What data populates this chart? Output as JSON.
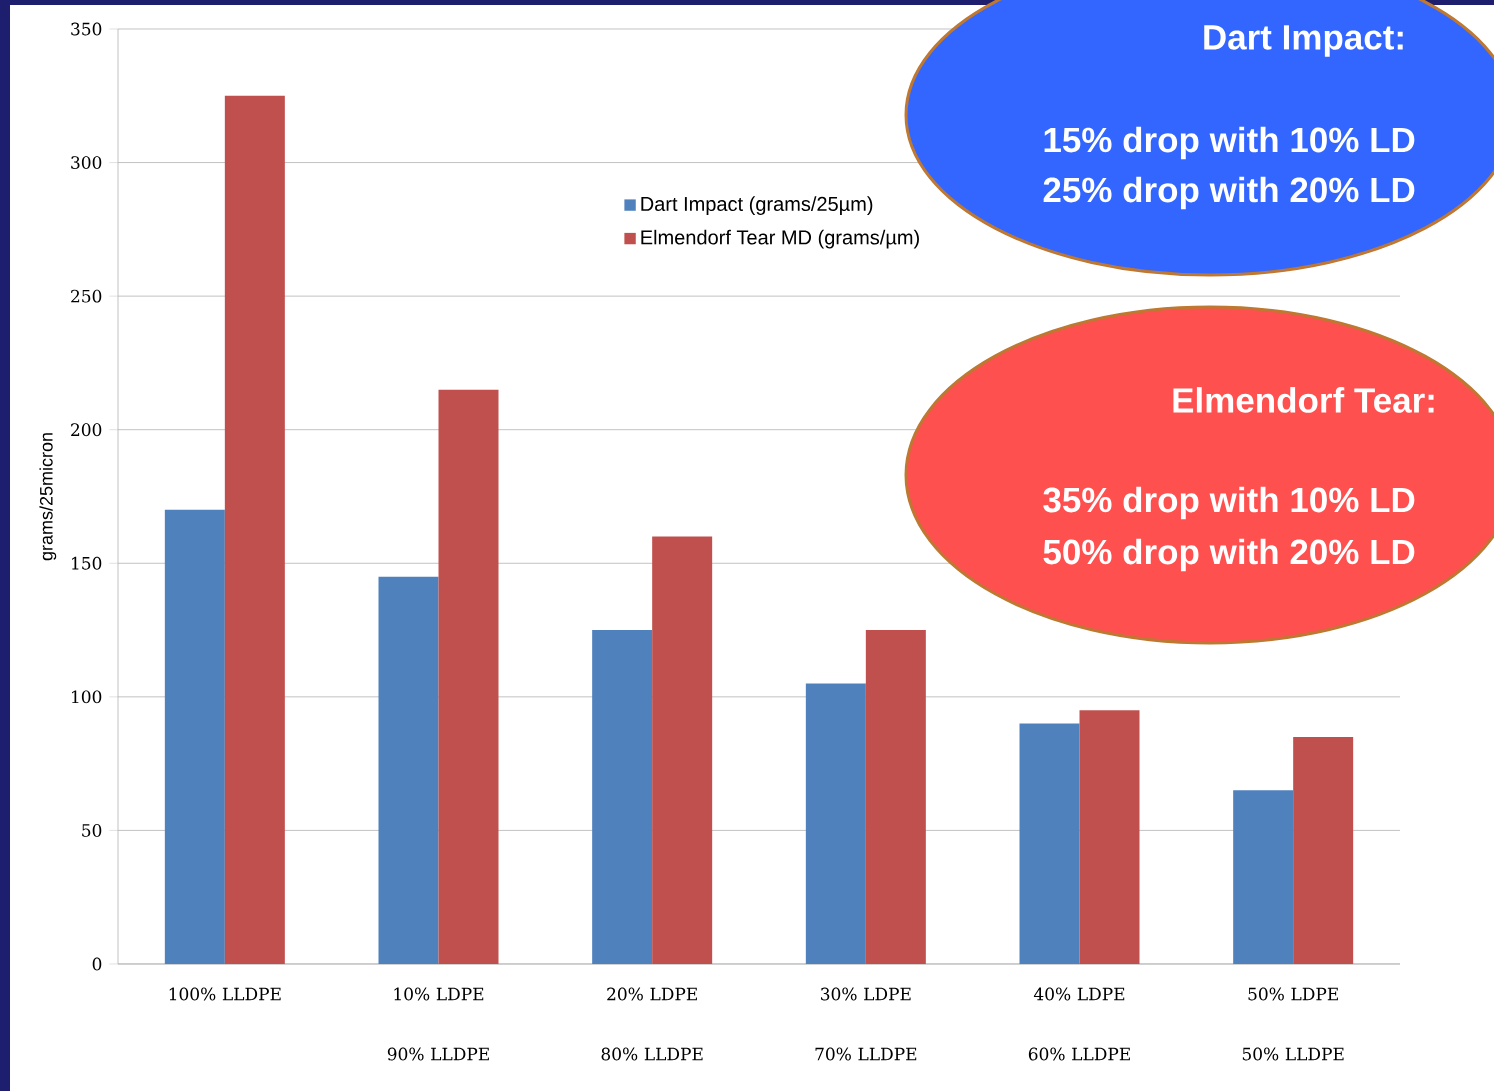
{
  "chart_data": {
    "type": "bar",
    "ylabel": "grams/25micron",
    "categories": [
      "100% LLDPE",
      "10% LDPE 90% LLDPE",
      "20% LDPE 80% LLDPE",
      "30% LDPE 70% LLDPE",
      "40% LDPE 60% LLDPE",
      "50% LDPE 50% LLDPE"
    ],
    "series": [
      {
        "name": "Dart Impact (grams/25µm)",
        "color": "#4f81bd",
        "values": [
          170,
          145,
          125,
          105,
          90,
          65
        ]
      },
      {
        "name": "Elmendorf Tear MD (grams/µm)",
        "color": "#c0504d",
        "values": [
          325,
          215,
          160,
          125,
          95,
          85
        ]
      }
    ],
    "ylim": [
      0,
      350
    ],
    "yticks": [
      0,
      50,
      100,
      150,
      200,
      250,
      300,
      350
    ],
    "grid": "y",
    "legend": "top",
    "annotations": [
      "Dart  Impact:",
      "15% drop  with 10% LD",
      "25% drop with 20% LD",
      "Elmendorf Tear:",
      "35% drop with 10% LD",
      "50% drop with 20% LD"
    ]
  }
}
